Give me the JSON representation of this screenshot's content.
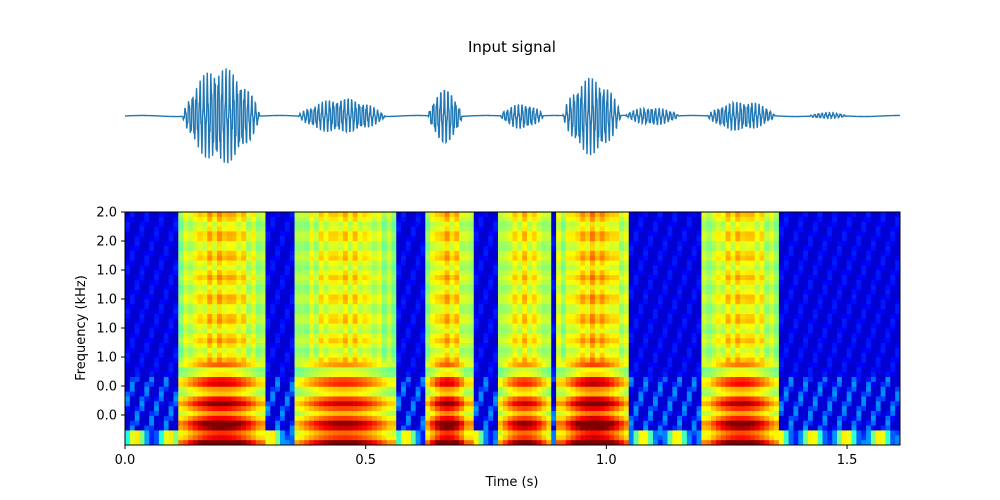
{
  "chart_data": [
    {
      "type": "line",
      "title": "Input signal",
      "xlabel": "",
      "ylabel": "",
      "axes_visible": false,
      "line_color": "#1f77b4",
      "xlim": [
        0.0,
        1.61
      ],
      "ylim": [
        -1.0,
        1.0
      ],
      "bursts": [
        {
          "start": 0.12,
          "end": 0.28,
          "amplitude": 0.95
        },
        {
          "start": 0.36,
          "end": 0.54,
          "amplitude": 0.35
        },
        {
          "start": 0.63,
          "end": 0.7,
          "amplitude": 0.55
        },
        {
          "start": 0.78,
          "end": 0.87,
          "amplitude": 0.25
        },
        {
          "start": 0.91,
          "end": 1.03,
          "amplitude": 0.75
        },
        {
          "start": 1.04,
          "end": 1.15,
          "amplitude": 0.18
        },
        {
          "start": 1.21,
          "end": 1.35,
          "amplitude": 0.3
        },
        {
          "start": 1.42,
          "end": 1.5,
          "amplitude": 0.06
        }
      ]
    },
    {
      "type": "heatmap",
      "title": "",
      "xlabel": "Time (s)",
      "ylabel": "Frequency (kHz)",
      "colormap": "jet",
      "xlim": [
        0.0,
        1.61
      ],
      "x_ticks": [
        {
          "value": 0.0,
          "label": "0.0"
        },
        {
          "value": 0.5,
          "label": "0.5"
        },
        {
          "value": 1.0,
          "label": "1.0"
        },
        {
          "value": 1.5,
          "label": "1.5"
        }
      ],
      "y_tick_labels": [
        "2.0",
        "2.0",
        "1.0",
        "1.0",
        "1.0",
        "1.0",
        "0.0",
        "0.0"
      ],
      "high_energy_regions": [
        {
          "start": 0.12,
          "end": 0.28,
          "level": 0.85
        },
        {
          "start": 0.36,
          "end": 0.55,
          "level": 0.75
        },
        {
          "start": 0.63,
          "end": 0.71,
          "level": 0.85
        },
        {
          "start": 0.78,
          "end": 0.88,
          "level": 0.75
        },
        {
          "start": 0.91,
          "end": 1.04,
          "level": 0.9
        },
        {
          "start": 1.21,
          "end": 1.35,
          "level": 0.8
        }
      ]
    }
  ]
}
